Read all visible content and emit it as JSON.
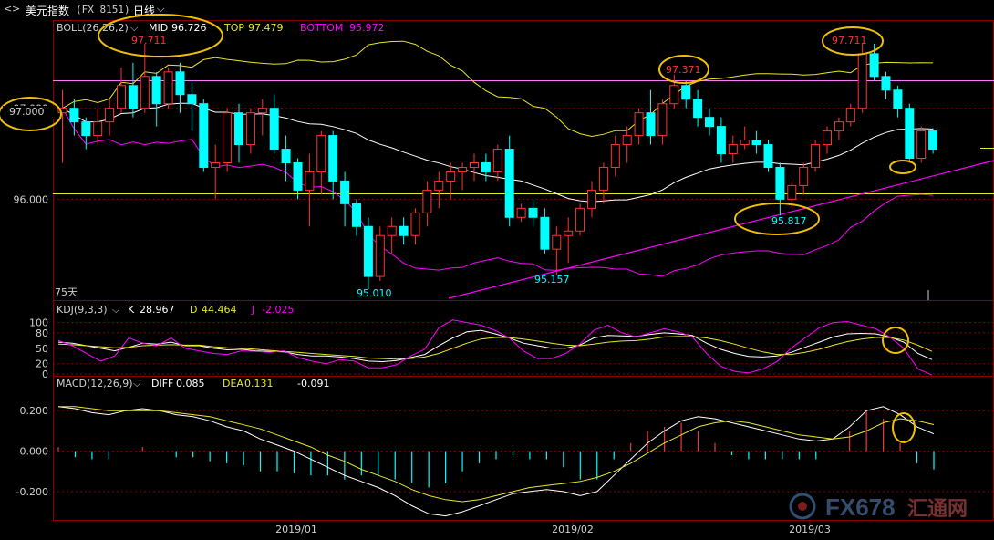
{
  "header": {
    "back_label": "<",
    "forward_label": ">",
    "instrument": "美元指数",
    "code": "(FX 8151)",
    "period": "日线"
  },
  "watermark": {
    "text": "FX678",
    "cn": "汇通网"
  },
  "colors": {
    "up": "#ff3232",
    "down": "#00ffff",
    "boll_mid": "#ffffff",
    "boll_top": "#e6e62a",
    "boll_bottom": "#ff00ff",
    "k": "#ffffff",
    "d": "#e6e62a",
    "j": "#ff00ff",
    "annotation": "#f0c000"
  },
  "chart_data": [
    {
      "type": "candlestick",
      "indicator": "BOLL(26,26,2)",
      "legend": {
        "name": "BOLL(26,26,2)",
        "mid_label": "MID",
        "mid_value": "96.726",
        "top_label": "TOP",
        "top_value": "97.479",
        "bottom_label": "BOTTOM",
        "bottom_value": "95.972"
      },
      "ylim": [
        94.9,
        97.95
      ],
      "yticks": [
        "97.000",
        "96.000"
      ],
      "x_ticks": [
        "2019/01",
        "2019/02",
        "2019/03"
      ],
      "annotations": [
        "97.711",
        "97.371",
        "97.711",
        "97.000",
        "95.817",
        "95.157",
        "95.010"
      ],
      "period_label": "75天",
      "ohlc": [
        [
          96.95,
          97.2,
          96.4,
          97.0
        ],
        [
          97.0,
          97.1,
          96.7,
          96.85
        ],
        [
          96.85,
          96.9,
          96.55,
          96.7
        ],
        [
          96.7,
          97.0,
          96.6,
          96.85
        ],
        [
          96.85,
          97.1,
          96.7,
          97.0
        ],
        [
          97.0,
          97.45,
          96.95,
          97.25
        ],
        [
          97.25,
          97.5,
          96.9,
          97.0
        ],
        [
          97.0,
          97.71,
          96.95,
          97.35
        ],
        [
          97.35,
          97.4,
          96.8,
          97.05
        ],
        [
          97.05,
          97.45,
          97.0,
          97.4
        ],
        [
          97.4,
          97.5,
          96.95,
          97.15
        ],
        [
          97.15,
          97.3,
          96.75,
          97.05
        ],
        [
          97.05,
          97.1,
          96.3,
          96.35
        ],
        [
          96.35,
          96.6,
          96.0,
          96.4
        ],
        [
          96.4,
          97.0,
          96.3,
          96.95
        ],
        [
          96.95,
          97.05,
          96.4,
          96.6
        ],
        [
          96.6,
          97.0,
          96.5,
          96.95
        ],
        [
          96.95,
          97.1,
          96.7,
          97.0
        ],
        [
          97.0,
          97.15,
          96.5,
          96.55
        ],
        [
          96.55,
          96.7,
          96.2,
          96.4
        ],
        [
          96.4,
          96.45,
          96.0,
          96.1
        ],
        [
          96.1,
          96.5,
          95.7,
          96.3
        ],
        [
          96.3,
          96.75,
          96.05,
          96.7
        ],
        [
          96.7,
          96.75,
          96.0,
          96.2
        ],
        [
          96.2,
          96.3,
          95.7,
          95.95
        ],
        [
          95.95,
          96.0,
          95.6,
          95.7
        ],
        [
          95.7,
          95.8,
          95.01,
          95.15
        ],
        [
          95.15,
          95.7,
          95.1,
          95.6
        ],
        [
          95.6,
          95.8,
          95.4,
          95.7
        ],
        [
          95.7,
          95.8,
          95.5,
          95.6
        ],
        [
          95.6,
          95.9,
          95.5,
          95.85
        ],
        [
          95.85,
          96.2,
          95.7,
          96.1
        ],
        [
          96.1,
          96.3,
          95.9,
          96.2
        ],
        [
          96.2,
          96.4,
          96.0,
          96.3
        ],
        [
          96.3,
          96.4,
          96.1,
          96.35
        ],
        [
          96.35,
          96.5,
          96.2,
          96.4
        ],
        [
          96.4,
          96.5,
          96.2,
          96.3
        ],
        [
          96.3,
          96.6,
          96.2,
          96.55
        ],
        [
          96.55,
          96.7,
          95.7,
          95.8
        ],
        [
          95.8,
          95.95,
          95.75,
          95.9
        ],
        [
          95.9,
          96.0,
          95.7,
          95.8
        ],
        [
          95.8,
          95.9,
          95.4,
          95.45
        ],
        [
          95.45,
          95.7,
          95.16,
          95.6
        ],
        [
          95.6,
          95.8,
          95.3,
          95.65
        ],
        [
          95.65,
          95.95,
          95.6,
          95.9
        ],
        [
          95.9,
          96.2,
          95.8,
          96.1
        ],
        [
          96.1,
          96.4,
          95.95,
          96.35
        ],
        [
          96.35,
          96.7,
          96.25,
          96.6
        ],
        [
          96.6,
          96.8,
          96.4,
          96.7
        ],
        [
          96.7,
          97.0,
          96.6,
          96.95
        ],
        [
          96.95,
          97.2,
          96.6,
          96.7
        ],
        [
          96.7,
          97.1,
          96.6,
          97.05
        ],
        [
          97.05,
          97.37,
          97.0,
          97.25
        ],
        [
          97.25,
          97.3,
          97.0,
          97.1
        ],
        [
          97.1,
          97.2,
          96.8,
          96.9
        ],
        [
          96.9,
          97.0,
          96.7,
          96.8
        ],
        [
          96.8,
          96.9,
          96.4,
          96.5
        ],
        [
          96.5,
          96.7,
          96.4,
          96.6
        ],
        [
          96.6,
          96.8,
          96.55,
          96.65
        ],
        [
          96.65,
          96.75,
          96.5,
          96.6
        ],
        [
          96.6,
          96.65,
          96.3,
          96.35
        ],
        [
          96.35,
          96.4,
          95.82,
          96.0
        ],
        [
          96.0,
          96.2,
          95.9,
          96.15
        ],
        [
          96.15,
          96.4,
          96.05,
          96.35
        ],
        [
          96.35,
          96.65,
          96.3,
          96.6
        ],
        [
          96.6,
          96.8,
          96.5,
          96.75
        ],
        [
          96.75,
          96.9,
          96.65,
          96.85
        ],
        [
          96.85,
          97.05,
          96.8,
          97.0
        ],
        [
          97.0,
          97.71,
          96.95,
          97.6
        ],
        [
          97.6,
          97.71,
          97.3,
          97.35
        ],
        [
          97.35,
          97.4,
          97.1,
          97.2
        ],
        [
          97.2,
          97.25,
          96.9,
          97.0
        ],
        [
          97.0,
          97.05,
          96.4,
          96.45
        ],
        [
          96.45,
          96.8,
          96.4,
          96.75
        ],
        [
          96.75,
          96.78,
          96.5,
          96.55
        ]
      ]
    },
    {
      "type": "line",
      "indicator": "KDJ(9,3,3)",
      "legend": {
        "name": "KDJ(9,3,3)",
        "k_label": "K",
        "k_value": "28.967",
        "d_label": "D",
        "d_value": "44.464",
        "j_label": "J",
        "j_value": "-2.025"
      },
      "ylim": [
        0,
        110
      ],
      "yticks": [
        "100",
        "80",
        "50",
        "20",
        "0"
      ],
      "k": [
        62,
        60,
        55,
        50,
        45,
        52,
        60,
        58,
        62,
        55,
        55,
        50,
        47,
        48,
        45,
        44,
        43,
        38,
        35,
        35,
        33,
        30,
        25,
        24,
        26,
        32,
        38,
        55,
        70,
        82,
        85,
        78,
        70,
        60,
        55,
        50,
        50,
        56,
        70,
        75,
        74,
        73,
        77,
        80,
        78,
        75,
        60,
        48,
        40,
        34,
        33,
        35,
        42,
        52,
        62,
        72,
        78,
        79,
        78,
        72,
        62,
        40,
        28
      ],
      "d": [
        58,
        57,
        55,
        53,
        51,
        52,
        55,
        56,
        57,
        56,
        56,
        53,
        51,
        50,
        48,
        46,
        44,
        42,
        40,
        38,
        36,
        34,
        31,
        30,
        29,
        30,
        33,
        40,
        50,
        60,
        68,
        71,
        71,
        68,
        64,
        60,
        56,
        55,
        58,
        62,
        64,
        65,
        68,
        72,
        73,
        73,
        70,
        65,
        58,
        50,
        43,
        38,
        38,
        42,
        48,
        56,
        63,
        68,
        71,
        71,
        66,
        56,
        44
      ],
      "j": [
        65,
        55,
        40,
        25,
        35,
        70,
        60,
        55,
        70,
        50,
        45,
        40,
        38,
        45,
        44,
        42,
        45,
        32,
        25,
        20,
        28,
        25,
        12,
        12,
        18,
        35,
        48,
        90,
        105,
        100,
        95,
        85,
        70,
        45,
        30,
        30,
        40,
        58,
        85,
        95,
        80,
        72,
        80,
        88,
        82,
        72,
        40,
        15,
        5,
        2,
        10,
        24,
        50,
        70,
        90,
        100,
        102,
        95,
        88,
        72,
        50,
        10,
        -2
      ]
    },
    {
      "type": "bar+line",
      "indicator": "MACD(12,26,9)",
      "legend": {
        "name": "MACD(12,26,9)",
        "diff_label": "DIFF",
        "diff_value": "0.085",
        "dea_label": "DEA",
        "dea_value": "0.131",
        "macd_value": "-0.091"
      },
      "ylim": [
        -0.34,
        0.3
      ],
      "yticks": [
        "0.200",
        "0.000",
        "-0.200"
      ],
      "diff": [
        0.22,
        0.21,
        0.19,
        0.18,
        0.2,
        0.21,
        0.2,
        0.18,
        0.17,
        0.15,
        0.12,
        0.1,
        0.06,
        0.03,
        0.0,
        -0.04,
        -0.08,
        -0.12,
        -0.15,
        -0.18,
        -0.22,
        -0.27,
        -0.31,
        -0.32,
        -0.3,
        -0.27,
        -0.24,
        -0.21,
        -0.2,
        -0.19,
        -0.2,
        -0.22,
        -0.2,
        -0.12,
        -0.04,
        0.04,
        0.1,
        0.15,
        0.17,
        0.16,
        0.14,
        0.12,
        0.1,
        0.08,
        0.06,
        0.05,
        0.06,
        0.12,
        0.2,
        0.22,
        0.18,
        0.12,
        0.085
      ],
      "dea": [
        0.22,
        0.22,
        0.21,
        0.2,
        0.2,
        0.2,
        0.2,
        0.19,
        0.18,
        0.17,
        0.15,
        0.13,
        0.11,
        0.08,
        0.05,
        0.02,
        -0.02,
        -0.05,
        -0.09,
        -0.12,
        -0.15,
        -0.19,
        -0.22,
        -0.24,
        -0.25,
        -0.24,
        -0.22,
        -0.2,
        -0.18,
        -0.17,
        -0.16,
        -0.15,
        -0.13,
        -0.1,
        -0.06,
        -0.01,
        0.04,
        0.08,
        0.12,
        0.14,
        0.15,
        0.14,
        0.12,
        0.1,
        0.08,
        0.07,
        0.06,
        0.07,
        0.1,
        0.14,
        0.16,
        0.15,
        0.131
      ],
      "macd": [
        0.02,
        -0.03,
        -0.04,
        -0.04,
        0.0,
        0.02,
        0.0,
        -0.03,
        -0.03,
        -0.05,
        -0.06,
        -0.07,
        -0.1,
        -0.1,
        -0.11,
        -0.12,
        -0.12,
        -0.14,
        -0.12,
        -0.12,
        -0.14,
        -0.16,
        -0.18,
        -0.16,
        -0.1,
        -0.06,
        -0.04,
        -0.02,
        -0.04,
        -0.04,
        -0.08,
        -0.14,
        -0.14,
        -0.04,
        0.04,
        0.1,
        0.12,
        0.14,
        0.1,
        0.04,
        -0.02,
        -0.04,
        -0.04,
        -0.04,
        -0.04,
        -0.04,
        0.0,
        0.1,
        0.2,
        0.16,
        0.04,
        -0.06,
        -0.091
      ]
    }
  ]
}
